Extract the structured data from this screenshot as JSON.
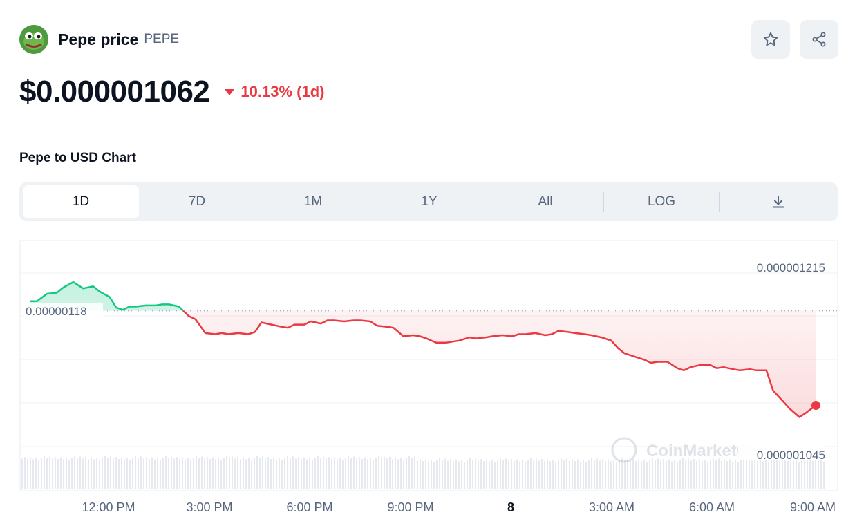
{
  "coin": {
    "name": "Pepe price",
    "symbol": "PEPE",
    "logo_icon": "pepe-frog-icon",
    "price": "$0.000001062",
    "change": "10.13% (1d)",
    "change_direction": "down"
  },
  "actions": {
    "star_icon": "star-icon",
    "share_icon": "share-icon"
  },
  "chart_section": {
    "title": "Pepe to USD Chart"
  },
  "tabs": [
    {
      "label": "1D",
      "active": true
    },
    {
      "label": "7D",
      "active": false
    },
    {
      "label": "1M",
      "active": false
    },
    {
      "label": "1Y",
      "active": false
    },
    {
      "label": "All",
      "active": false
    },
    {
      "label": "LOG",
      "active": false
    }
  ],
  "download_icon": "download-icon",
  "watermark": "CoinMarketCap",
  "colors": {
    "up": "#16c784",
    "down": "#ea3943",
    "text": "#0d1421",
    "muted": "#58667e"
  },
  "chart_data": {
    "type": "line",
    "title": "",
    "xlabel": "",
    "ylabel": "",
    "reference_value": 1.18e-06,
    "reference_label": "0.00000118",
    "high_label": "0.000001215",
    "low_label": "0.000001045",
    "ylim": [
      1.04e-06,
      1.222e-06
    ],
    "x_tick_labels": [
      "12:00 PM",
      "3:00 PM",
      "6:00 PM",
      "9:00 PM",
      "8",
      "3:00 AM",
      "6:00 AM",
      "9:00 AM"
    ],
    "x_hours": [
      0,
      0.2,
      0.5,
      0.8,
      1,
      1.3,
      1.6,
      1.9,
      2.1,
      2.4,
      2.6,
      2.8,
      3,
      3.2,
      3.5,
      3.8,
      4,
      4.2,
      4.5,
      4.8,
      5,
      5.3,
      5.6,
      5.8,
      6,
      6.3,
      6.6,
      6.8,
      7,
      7.3,
      7.6,
      7.8,
      8,
      8.3,
      8.5,
      8.8,
      9,
      9.2,
      9.5,
      9.8,
      10,
      10.3,
      10.5,
      10.8,
      11,
      11.3,
      11.6,
      11.8,
      12,
      12.3,
      12.6,
      12.8,
      13,
      13.3,
      13.5,
      13.8,
      14,
      14.3,
      14.6,
      14.8,
      15,
      15.3,
      15.6,
      15.8,
      16,
      16.3,
      16.5,
      16.8,
      17,
      17.3,
      17.6,
      17.8,
      18,
      18.3,
      18.6,
      18.8,
      19,
      19.3,
      19.6,
      19.8,
      20,
      20.3,
      20.6,
      20.8,
      21,
      21.3,
      21.5,
      21.8,
      22,
      22.3,
      22.5,
      22.8,
      23,
      23.3,
      23.5,
      23.8
    ],
    "values": [
      1.189e-06,
      1.189e-06,
      1.196e-06,
      1.197e-06,
      1.202e-06,
      1.207e-06,
      1.201e-06,
      1.203e-06,
      1.198e-06,
      1.193e-06,
      1.183e-06,
      1.181e-06,
      1.184e-06,
      1.184e-06,
      1.185e-06,
      1.185e-06,
      1.186e-06,
      1.186e-06,
      1.184e-06,
      1.175e-06,
      1.172e-06,
      1.159e-06,
      1.158e-06,
      1.159e-06,
      1.158e-06,
      1.159e-06,
      1.158e-06,
      1.16e-06,
      1.169e-06,
      1.167e-06,
      1.165e-06,
      1.164e-06,
      1.167e-06,
      1.167e-06,
      1.17e-06,
      1.168e-06,
      1.171e-06,
      1.171e-06,
      1.17e-06,
      1.171e-06,
      1.171e-06,
      1.17e-06,
      1.166e-06,
      1.165e-06,
      1.164e-06,
      1.156e-06,
      1.157e-06,
      1.156e-06,
      1.154e-06,
      1.15e-06,
      1.15e-06,
      1.151e-06,
      1.152e-06,
      1.155e-06,
      1.154e-06,
      1.155e-06,
      1.156e-06,
      1.157e-06,
      1.156e-06,
      1.158e-06,
      1.158e-06,
      1.159e-06,
      1.157e-06,
      1.158e-06,
      1.161e-06,
      1.16e-06,
      1.159e-06,
      1.158e-06,
      1.157e-06,
      1.155e-06,
      1.152e-06,
      1.145e-06,
      1.14e-06,
      1.137e-06,
      1.134e-06,
      1.131e-06,
      1.132e-06,
      1.132e-06,
      1.126e-06,
      1.124e-06,
      1.127e-06,
      1.129e-06,
      1.129e-06,
      1.126e-06,
      1.127e-06,
      1.125e-06,
      1.124e-06,
      1.125e-06,
      1.124e-06,
      1.124e-06,
      1.105e-06,
      1.095e-06,
      1.088e-06,
      1.08e-06,
      1.084e-06,
      1.091e-06
    ],
    "grid": true,
    "legend": "none",
    "series_colors": {
      "above_reference": "#16c784",
      "below_reference": "#ea3943"
    }
  }
}
